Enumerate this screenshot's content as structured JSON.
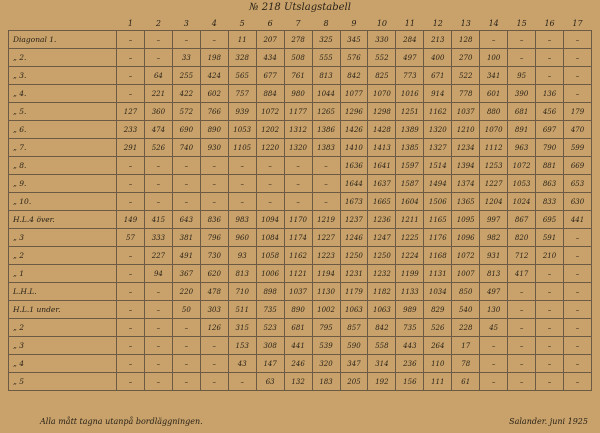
{
  "header": {
    "title": "№ 218 Utslagstabell"
  },
  "table": {
    "columns": [
      "1",
      "2",
      "3",
      "4",
      "5",
      "6",
      "7",
      "8",
      "9",
      "10",
      "11",
      "12",
      "13",
      "14",
      "15",
      "16",
      "17"
    ],
    "rows": [
      {
        "label": "Diagonal 1.",
        "cells": [
          "–",
          "–",
          "–",
          "–",
          "11",
          "207",
          "278",
          "325",
          "345",
          "330",
          "284",
          "213",
          "128",
          "–",
          "–",
          "–",
          "–"
        ]
      },
      {
        "label": "„ 2.",
        "cells": [
          "–",
          "–",
          "33",
          "198",
          "328",
          "434",
          "508",
          "555",
          "576",
          "552",
          "497",
          "400",
          "270",
          "100",
          "–",
          "–",
          "–"
        ]
      },
      {
        "label": "„ 3.",
        "cells": [
          "–",
          "64",
          "255",
          "424",
          "565",
          "677",
          "761",
          "813",
          "842",
          "825",
          "773",
          "671",
          "522",
          "341",
          "95",
          "–",
          "–"
        ]
      },
      {
        "label": "„ 4.",
        "cells": [
          "–",
          "221",
          "422",
          "602",
          "757",
          "884",
          "980",
          "1044",
          "1077",
          "1070",
          "1016",
          "914",
          "778",
          "601",
          "390",
          "136",
          "–"
        ]
      },
      {
        "label": "„ 5.",
        "cells": [
          "127",
          "360",
          "572",
          "766",
          "939",
          "1072",
          "1177",
          "1265",
          "1296",
          "1298",
          "1251",
          "1162",
          "1037",
          "880",
          "681",
          "456",
          "179"
        ]
      },
      {
        "label": "„ 6.",
        "cells": [
          "233",
          "474",
          "690",
          "890",
          "1053",
          "1202",
          "1312",
          "1386",
          "1426",
          "1428",
          "1389",
          "1320",
          "1210",
          "1070",
          "891",
          "697",
          "470"
        ]
      },
      {
        "label": "„ 7.",
        "cells": [
          "291",
          "526",
          "740",
          "930",
          "1105",
          "1220",
          "1320",
          "1383",
          "1410",
          "1413",
          "1385",
          "1327",
          "1234",
          "1112",
          "963",
          "790",
          "599"
        ]
      },
      {
        "label": "„ 8.",
        "cells": [
          "–",
          "–",
          "–",
          "–",
          "–",
          "–",
          "–",
          "–",
          "1636",
          "1641",
          "1597",
          "1514",
          "1394",
          "1253",
          "1072",
          "881",
          "669"
        ]
      },
      {
        "label": "„ 9.",
        "cells": [
          "–",
          "–",
          "–",
          "–",
          "–",
          "–",
          "–",
          "–",
          "1644",
          "1637",
          "1587",
          "1494",
          "1374",
          "1227",
          "1053",
          "863",
          "653"
        ]
      },
      {
        "label": "„ 10.",
        "cells": [
          "–",
          "–",
          "–",
          "–",
          "–",
          "–",
          "–",
          "–",
          "1673",
          "1665",
          "1604",
          "1506",
          "1365",
          "1204",
          "1024",
          "833",
          "630"
        ]
      },
      {
        "label": "H.L.4 över.",
        "cells": [
          "149",
          "415",
          "643",
          "836",
          "983",
          "1094",
          "1170",
          "1219",
          "1237",
          "1236",
          "1211",
          "1165",
          "1095",
          "997",
          "867",
          "695",
          "441"
        ]
      },
      {
        "label": "„ 3",
        "cells": [
          "57",
          "333",
          "381",
          "796",
          "960",
          "1084",
          "1174",
          "1227",
          "1246",
          "1247",
          "1225",
          "1176",
          "1096",
          "982",
          "820",
          "591",
          "–"
        ]
      },
      {
        "label": "„ 2",
        "cells": [
          "–",
          "227",
          "491",
          "730",
          "93",
          "1058",
          "1162",
          "1223",
          "1250",
          "1250",
          "1224",
          "1168",
          "1072",
          "931",
          "712",
          "210",
          "–"
        ]
      },
      {
        "label": "„ 1",
        "cells": [
          "–",
          "94",
          "367",
          "620",
          "813",
          "1006",
          "1121",
          "1194",
          "1231",
          "1232",
          "1199",
          "1131",
          "1007",
          "813",
          "417",
          "–",
          "–"
        ]
      },
      {
        "label": "L.H.L.",
        "cells": [
          "–",
          "–",
          "220",
          "478",
          "710",
          "898",
          "1037",
          "1130",
          "1179",
          "1182",
          "1133",
          "1034",
          "850",
          "497",
          "–",
          "–",
          "–"
        ]
      },
      {
        "label": "H.L.1 under.",
        "cells": [
          "–",
          "–",
          "50",
          "303",
          "511",
          "735",
          "890",
          "1002",
          "1063",
          "1063",
          "989",
          "829",
          "540",
          "130",
          "–",
          "–",
          "–"
        ]
      },
      {
        "label": "„ 2",
        "cells": [
          "–",
          "–",
          "–",
          "126",
          "315",
          "523",
          "681",
          "795",
          "857",
          "842",
          "735",
          "526",
          "228",
          "45",
          "–",
          "–",
          "–"
        ]
      },
      {
        "label": "„ 3",
        "cells": [
          "–",
          "–",
          "–",
          "–",
          "153",
          "308",
          "441",
          "539",
          "590",
          "558",
          "443",
          "264",
          "17",
          "–",
          "–",
          "–",
          "–"
        ]
      },
      {
        "label": "„ 4",
        "cells": [
          "–",
          "–",
          "–",
          "–",
          "43",
          "147",
          "246",
          "320",
          "347",
          "314",
          "236",
          "110",
          "78",
          "–",
          "–",
          "–",
          "–"
        ]
      },
      {
        "label": "„ 5",
        "cells": [
          "–",
          "–",
          "–",
          "–",
          "–",
          "63",
          "132",
          "183",
          "205",
          "192",
          "156",
          "111",
          "61",
          "–",
          "–",
          "–",
          "–"
        ]
      }
    ]
  },
  "footer": {
    "note": "Alla mått tagna utanpå bordläggningen.",
    "signature": "Salander. juni 1925"
  }
}
